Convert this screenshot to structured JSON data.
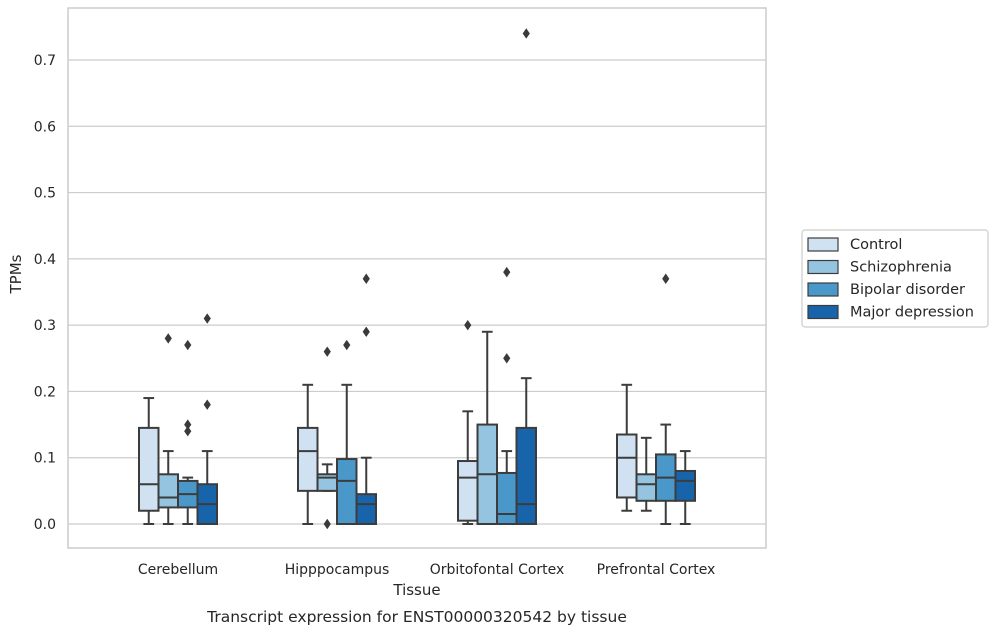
{
  "chart_data": {
    "type": "box",
    "xlabel": "Tissue",
    "ylabel": "TPMs",
    "caption": "Transcript expression for ENST00000320542 by tissue",
    "ylim": [
      -0.036,
      0.78
    ],
    "yticks": [
      0.0,
      0.1,
      0.2,
      0.3,
      0.4,
      0.5,
      0.6,
      0.7
    ],
    "ytick_labels": [
      "0.0",
      "0.1",
      "0.2",
      "0.3",
      "0.4",
      "0.5",
      "0.6",
      "0.7"
    ],
    "grid": "horizontal",
    "legend_position": "outside-right",
    "categories": [
      "Cerebellum",
      "Hipppocampus",
      "Orbitofontal Cortex",
      "Prefrontal Cortex"
    ],
    "series": [
      {
        "name": "Control",
        "color": "#d0e1f2",
        "boxes": [
          {
            "whislo": 0.0,
            "q1": 0.02,
            "med": 0.06,
            "q3": 0.145,
            "whishi": 0.19,
            "fliers": []
          },
          {
            "whislo": 0.0,
            "q1": 0.05,
            "med": 0.11,
            "q3": 0.145,
            "whishi": 0.21,
            "fliers": []
          },
          {
            "whislo": 0.0,
            "q1": 0.005,
            "med": 0.07,
            "q3": 0.095,
            "whishi": 0.17,
            "fliers": [
              0.3
            ]
          },
          {
            "whislo": 0.02,
            "q1": 0.04,
            "med": 0.1,
            "q3": 0.135,
            "whishi": 0.21,
            "fliers": []
          }
        ]
      },
      {
        "name": "Schizophrenia",
        "color": "#94c4df",
        "boxes": [
          {
            "whislo": 0.0,
            "q1": 0.025,
            "med": 0.04,
            "q3": 0.075,
            "whishi": 0.11,
            "fliers": [
              0.28
            ]
          },
          {
            "whislo": 0.05,
            "q1": 0.05,
            "med": 0.07,
            "q3": 0.075,
            "whishi": 0.09,
            "fliers": [
              0.26,
              0.0
            ]
          },
          {
            "whislo": 0.0,
            "q1": 0.0,
            "med": 0.075,
            "q3": 0.15,
            "whishi": 0.29,
            "fliers": []
          },
          {
            "whislo": 0.02,
            "q1": 0.035,
            "med": 0.06,
            "q3": 0.075,
            "whishi": 0.13,
            "fliers": []
          }
        ]
      },
      {
        "name": "Bipolar disorder",
        "color": "#4a98c9",
        "boxes": [
          {
            "whislo": 0.0,
            "q1": 0.025,
            "med": 0.045,
            "q3": 0.065,
            "whishi": 0.07,
            "fliers": [
              0.27,
              0.15,
              0.14
            ]
          },
          {
            "whislo": 0.0,
            "q1": 0.0,
            "med": 0.065,
            "q3": 0.098,
            "whishi": 0.21,
            "fliers": [
              0.27
            ]
          },
          {
            "whislo": 0.0,
            "q1": 0.0,
            "med": 0.015,
            "q3": 0.077,
            "whishi": 0.11,
            "fliers": [
              0.38,
              0.25
            ]
          },
          {
            "whislo": 0.0,
            "q1": 0.035,
            "med": 0.07,
            "q3": 0.105,
            "whishi": 0.15,
            "fliers": [
              0.37
            ]
          }
        ]
      },
      {
        "name": "Major depression",
        "color": "#1764ab",
        "boxes": [
          {
            "whislo": 0.0,
            "q1": 0.0,
            "med": 0.03,
            "q3": 0.06,
            "whishi": 0.11,
            "fliers": [
              0.31,
              0.18
            ]
          },
          {
            "whislo": 0.0,
            "q1": 0.0,
            "med": 0.03,
            "q3": 0.045,
            "whishi": 0.1,
            "fliers": [
              0.37,
              0.29
            ]
          },
          {
            "whislo": 0.0,
            "q1": 0.0,
            "med": 0.03,
            "q3": 0.145,
            "whishi": 0.22,
            "fliers": [
              0.74
            ]
          },
          {
            "whislo": 0.0,
            "q1": 0.035,
            "med": 0.065,
            "q3": 0.08,
            "whishi": 0.11,
            "fliers": []
          }
        ]
      }
    ]
  },
  "colors": {
    "line": "#3c3c3c",
    "grid": "#cccccc",
    "frame": "#cccccc"
  }
}
